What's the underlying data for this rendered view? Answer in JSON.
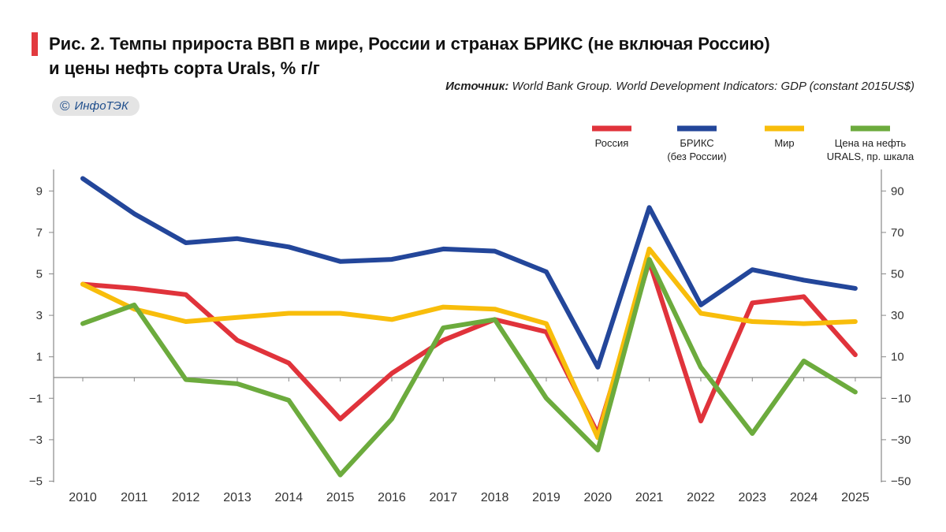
{
  "header": {
    "title_line1": "Рис. 2. Темпы прироста ВВП в мире, России и странах БРИКС (не включая Россию)",
    "title_line2": "и цены нефть сорта Urals, % г/г",
    "source_label": "Источник:",
    "source_text": " World Bank Group. World Development Indicators: GDP (constant 2015US$)",
    "logo_symbol": "©",
    "logo_text": "ИнфоТЭК"
  },
  "colors": {
    "russia": "#e0333b",
    "brics": "#23469a",
    "world": "#f8bd0b",
    "urals": "#6cab3d",
    "axis": "#888888",
    "text": "#333333"
  },
  "chart_data": {
    "type": "line",
    "title": "Рис. 2. Темпы прироста ВВП в мире, России и странах БРИКС (не включая Россию) и цены нефть сорта Urals, % г/г",
    "x": [
      "2010",
      "2011",
      "2012",
      "2013",
      "2014",
      "2015",
      "2016",
      "2017",
      "2018",
      "2019",
      "2020",
      "2021",
      "2022",
      "2023",
      "2024",
      "2025"
    ],
    "left_axis": {
      "ylim": [
        -5,
        10
      ],
      "ticks": [
        9,
        7,
        5,
        3,
        1,
        -1,
        -3,
        -5
      ],
      "tick_labels": [
        "9",
        "7",
        "5",
        "3",
        "1",
        "−1",
        "−3",
        "−5"
      ]
    },
    "right_axis": {
      "ylim": [
        -50,
        100
      ],
      "ticks": [
        90,
        70,
        50,
        30,
        10,
        -10,
        -30,
        -50
      ],
      "tick_labels": [
        "90",
        "70",
        "50",
        "30",
        "10",
        "−10",
        "−30",
        "−50"
      ]
    },
    "grid": false,
    "legend_position": "top-right",
    "series": [
      {
        "key": "russia",
        "name": "Россия",
        "axis": "left",
        "values": [
          4.5,
          4.3,
          4.0,
          1.8,
          0.7,
          -2.0,
          0.2,
          1.8,
          2.8,
          2.2,
          -2.7,
          5.6,
          -2.1,
          3.6,
          3.9,
          1.1
        ]
      },
      {
        "key": "brics",
        "name": "БРИКС (без России)",
        "axis": "left",
        "values": [
          9.6,
          7.9,
          6.5,
          6.7,
          6.3,
          5.6,
          5.7,
          6.2,
          6.1,
          5.1,
          0.5,
          8.2,
          3.5,
          5.2,
          4.7,
          4.3
        ]
      },
      {
        "key": "world",
        "name": "Мир",
        "axis": "left",
        "values": [
          4.5,
          3.3,
          2.7,
          2.9,
          3.1,
          3.1,
          2.8,
          3.4,
          3.3,
          2.6,
          -2.9,
          6.2,
          3.1,
          2.7,
          2.6,
          2.7
        ]
      },
      {
        "key": "urals",
        "name": "Цена на нефть URALS, пр. шкала",
        "axis": "right",
        "values": [
          26,
          35,
          -1,
          -3,
          -11,
          -47,
          -20,
          24,
          28,
          -10,
          -35,
          57,
          5,
          -27,
          8,
          -7
        ]
      }
    ],
    "legend": [
      {
        "key": "russia",
        "label_lines": [
          "Россия"
        ]
      },
      {
        "key": "brics",
        "label_lines": [
          "БРИКС",
          "(без России)"
        ]
      },
      {
        "key": "world",
        "label_lines": [
          "Мир"
        ]
      },
      {
        "key": "urals",
        "label_lines": [
          "Цена на нефть",
          "URALS, пр. шкала"
        ]
      }
    ]
  }
}
